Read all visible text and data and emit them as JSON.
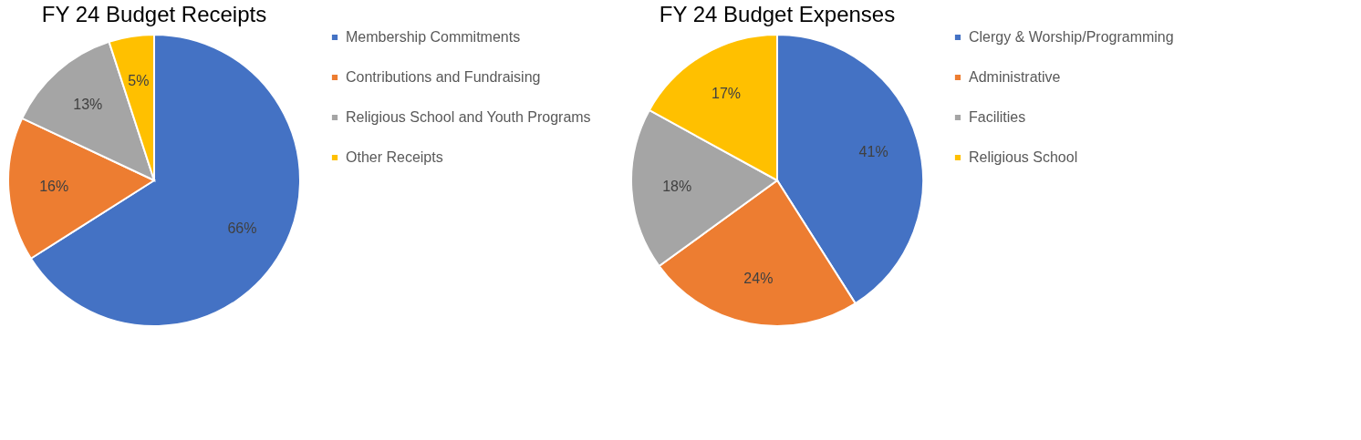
{
  "chart_data": [
    {
      "type": "pie",
      "title": "FY 24 Budget Receipts",
      "categories": [
        "Membership Commitments",
        "Contributions and Fundraising",
        "Religious School and Youth Programs",
        "Other Receipts"
      ],
      "values": [
        66,
        16,
        13,
        5
      ],
      "value_labels": [
        "66%",
        "16%",
        "13%",
        "5%"
      ],
      "colors": [
        "#4472c4",
        "#ed7d31",
        "#a5a5a5",
        "#ffc000"
      ],
      "legend": "right"
    },
    {
      "type": "pie",
      "title": "FY 24 Budget Expenses",
      "categories": [
        "Clergy & Worship/Programming",
        "Administrative",
        "Facilities",
        "Religious School"
      ],
      "values": [
        41,
        24,
        18,
        17
      ],
      "value_labels": [
        "41%",
        "24%",
        "18%",
        "17%"
      ],
      "colors": [
        "#4472c4",
        "#ed7d31",
        "#a5a5a5",
        "#ffc000"
      ],
      "legend": "right"
    }
  ]
}
